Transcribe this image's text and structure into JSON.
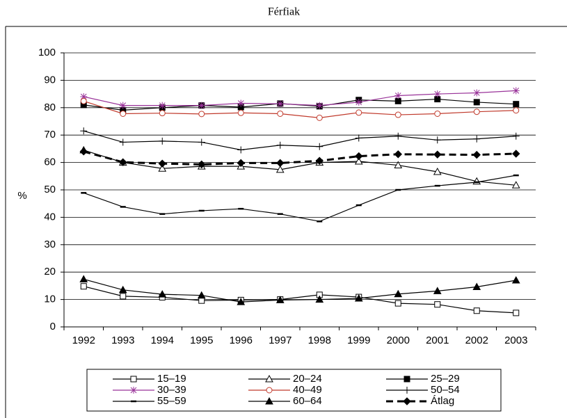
{
  "chart_data": {
    "type": "line",
    "title": "Férfiak",
    "y_label": "%",
    "categories": [
      "1992",
      "1993",
      "1994",
      "1995",
      "1996",
      "1997",
      "1998",
      "1999",
      "2000",
      "2001",
      "2002",
      "2003"
    ],
    "ylim": [
      0,
      100
    ],
    "yticks": [
      0,
      10,
      20,
      30,
      40,
      50,
      60,
      70,
      80,
      90,
      100
    ],
    "grid": true,
    "series": [
      {
        "name": "15–19",
        "color": "#000000",
        "marker": "square-open",
        "values": [
          14.8,
          11.2,
          10.8,
          9.6,
          9.8,
          10.0,
          11.7,
          10.9,
          8.6,
          8.2,
          5.9,
          5.1
        ]
      },
      {
        "name": "20–24",
        "color": "#000000",
        "marker": "triangle-open",
        "values": [
          64.5,
          60.0,
          57.8,
          58.6,
          58.6,
          57.4,
          60.0,
          60.4,
          59.0,
          56.6,
          53.1,
          51.7
        ]
      },
      {
        "name": "25–29",
        "color": "#000000",
        "marker": "square",
        "values": [
          81.0,
          79.1,
          80.0,
          80.8,
          80.2,
          81.5,
          80.5,
          82.8,
          82.4,
          83.1,
          82.0,
          81.3
        ]
      },
      {
        "name": "30–39",
        "color": "#993399",
        "marker": "star",
        "values": [
          84.0,
          80.8,
          80.8,
          80.8,
          81.6,
          81.4,
          80.8,
          82.0,
          84.4,
          85.0,
          85.4,
          86.2
        ]
      },
      {
        "name": "40–49",
        "color": "#c0392b",
        "marker": "circle-open",
        "values": [
          82.4,
          77.8,
          78.0,
          77.7,
          78.1,
          77.8,
          76.3,
          78.2,
          77.4,
          77.8,
          78.5,
          79.0
        ]
      },
      {
        "name": "50–54",
        "color": "#000000",
        "marker": "plus",
        "values": [
          71.5,
          67.4,
          67.8,
          67.4,
          64.6,
          66.3,
          65.8,
          68.9,
          69.6,
          68.2,
          68.6,
          69.6
        ]
      },
      {
        "name": "55–59",
        "color": "#000000",
        "marker": "dash",
        "values": [
          48.9,
          43.8,
          41.2,
          42.4,
          43.1,
          41.2,
          38.5,
          44.4,
          50.0,
          51.5,
          52.8,
          55.3
        ]
      },
      {
        "name": "60–64",
        "color": "#000000",
        "marker": "triangle",
        "values": [
          17.4,
          13.5,
          11.9,
          11.5,
          9.1,
          9.8,
          10.0,
          10.4,
          12.0,
          13.1,
          14.6,
          17.0
        ]
      },
      {
        "name": "Átlag",
        "color": "#000000",
        "marker": "diamond",
        "line_style": "dashed",
        "values": [
          64.0,
          60.1,
          59.6,
          59.3,
          59.8,
          59.8,
          60.6,
          62.3,
          63.0,
          62.9,
          62.8,
          63.2
        ]
      }
    ]
  }
}
